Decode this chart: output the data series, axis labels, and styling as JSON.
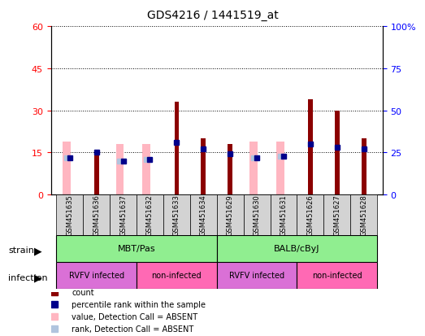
{
  "title": "GDS4216 / 1441519_at",
  "samples": [
    "GSM451635",
    "GSM451636",
    "GSM451637",
    "GSM451632",
    "GSM451633",
    "GSM451634",
    "GSM451629",
    "GSM451630",
    "GSM451631",
    "GSM451626",
    "GSM451627",
    "GSM451628"
  ],
  "count_values": [
    0,
    16,
    0,
    0,
    33,
    20,
    18,
    0,
    0,
    34,
    30,
    20
  ],
  "percentile_values": [
    22,
    25,
    20,
    21,
    31,
    27,
    24,
    22,
    23,
    30,
    28,
    27
  ],
  "absent_value_heights": [
    19,
    0,
    18,
    18,
    0,
    0,
    0,
    19,
    19,
    0,
    0,
    0
  ],
  "absent_rank_heights": [
    22,
    0,
    20,
    21,
    0,
    0,
    0,
    22,
    23,
    0,
    0,
    0
  ],
  "strains": [
    {
      "label": "MBT/Pas",
      "start": 0,
      "end": 6,
      "color": "#90EE90"
    },
    {
      "label": "BALB/cByJ",
      "start": 6,
      "end": 12,
      "color": "#90EE90"
    }
  ],
  "infections": [
    {
      "label": "RVFV infected",
      "start": 0,
      "end": 3,
      "color": "#DA70D6"
    },
    {
      "label": "non-infected",
      "start": 3,
      "end": 6,
      "color": "#FF69B4"
    },
    {
      "label": "RVFV infected",
      "start": 6,
      "end": 9,
      "color": "#DA70D6"
    },
    {
      "label": "non-infected",
      "start": 9,
      "end": 12,
      "color": "#FF69B4"
    }
  ],
  "left_ylim": [
    0,
    60
  ],
  "right_ylim": [
    0,
    100
  ],
  "left_yticks": [
    0,
    15,
    30,
    45,
    60
  ],
  "right_yticks": [
    0,
    25,
    50,
    75,
    100
  ],
  "count_color": "#8B0000",
  "percentile_color": "#00008B",
  "absent_value_color": "#FFB6C1",
  "absent_rank_color": "#B0C4DE",
  "bar_width": 0.25,
  "bg_color": "#ffffff",
  "plot_bg": "#ffffff"
}
